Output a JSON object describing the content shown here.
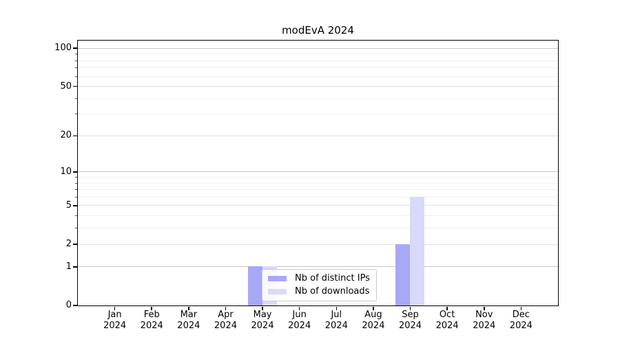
{
  "title": "modEvA 2024",
  "legend": {
    "items": [
      {
        "label": "Nb of distinct IPs",
        "color": "#a8a8f8"
      },
      {
        "label": "Nb of downloads",
        "color": "#d9d9f9"
      }
    ]
  },
  "chart_data": {
    "type": "bar",
    "title": "modEvA 2024",
    "categories": [
      "Jan",
      "Feb",
      "Mar",
      "Apr",
      "May",
      "Jun",
      "Jul",
      "Aug",
      "Sep",
      "Oct",
      "Nov",
      "Dec"
    ],
    "category_year": "2024",
    "series": [
      {
        "name": "Nb of distinct IPs",
        "color": "#a8a8f8",
        "values": [
          0,
          0,
          0,
          0,
          1,
          0,
          0,
          0,
          2,
          0,
          0,
          0
        ]
      },
      {
        "name": "Nb of downloads",
        "color": "#d9d9f9",
        "values": [
          0,
          0,
          0,
          0,
          1,
          0,
          0,
          0,
          6,
          0,
          0,
          0
        ]
      }
    ],
    "xlabel": "",
    "ylabel": "",
    "y_scale": "log1p",
    "ylim": [
      0,
      115
    ],
    "y_ticks": [
      0,
      1,
      2,
      5,
      10,
      20,
      50,
      100
    ],
    "y_decade_ticks": [
      1,
      10,
      100
    ],
    "y_minor_gridlines": [
      3,
      4,
      6,
      7,
      8,
      9,
      30,
      40,
      60,
      70,
      80,
      90
    ],
    "grid": "horizontal",
    "legend_position": "inside-bottom-center",
    "colors": {
      "grid_major": "#c6c6c6",
      "grid_mid": "#e2e2e2",
      "grid_minor": "#f0f0f0",
      "spine": "#000000",
      "background": "#ffffff"
    }
  }
}
